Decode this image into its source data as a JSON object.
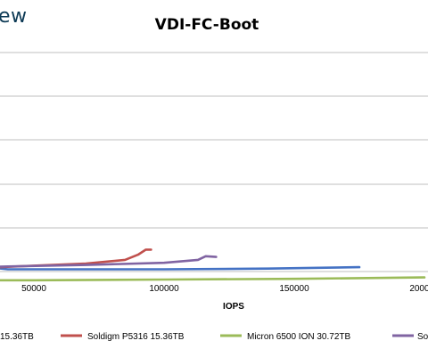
{
  "brand": {
    "text": "ew"
  },
  "chart_data": {
    "type": "line",
    "title": "VDI-FC-Boot",
    "xlabel": "IOPS",
    "ylabel": "",
    "xlim": [
      0,
      200000
    ],
    "ylim": [
      0,
      3
    ],
    "x_ticks": [
      {
        "value": 50000,
        "label": "50000"
      },
      {
        "value": 100000,
        "label": "100000"
      },
      {
        "value": 150000,
        "label": "150000"
      },
      {
        "value": 200000,
        "label": "200000"
      }
    ],
    "grid": true,
    "legend_position": "bottom",
    "series": [
      {
        "name": "15.36TB",
        "color": "#4472C4",
        "points": [
          [
            0,
            0.28
          ],
          [
            8000,
            0.3
          ],
          [
            18000,
            0.24
          ],
          [
            26000,
            0.14
          ],
          [
            32000,
            0.06
          ],
          [
            40000,
            0.03
          ],
          [
            60000,
            0.03
          ],
          [
            100000,
            0.03
          ],
          [
            140000,
            0.04
          ],
          [
            175000,
            0.06
          ]
        ]
      },
      {
        "name": "Soldigm P5316 15.36TB",
        "color": "#C0504D",
        "points": [
          [
            0,
            0.1
          ],
          [
            10000,
            0.06
          ],
          [
            20000,
            0.04
          ],
          [
            30000,
            0.05
          ],
          [
            50000,
            0.08
          ],
          [
            70000,
            0.11
          ],
          [
            85000,
            0.16
          ],
          [
            90000,
            0.23
          ],
          [
            93000,
            0.3
          ],
          [
            95000,
            0.3
          ]
        ]
      },
      {
        "name": "Micron 6500 ION 30.72TB",
        "color": "#9BBB59",
        "points": [
          [
            0,
            -0.12
          ],
          [
            50000,
            -0.12
          ],
          [
            100000,
            -0.11
          ],
          [
            150000,
            -0.1
          ],
          [
            200000,
            -0.08
          ]
        ]
      },
      {
        "name": "So",
        "color": "#8064A2",
        "points": [
          [
            0,
            0.98
          ],
          [
            2000,
            0.75
          ],
          [
            5000,
            0.45
          ],
          [
            9000,
            0.2
          ],
          [
            14000,
            0.08
          ],
          [
            22000,
            0.05
          ],
          [
            40000,
            0.07
          ],
          [
            70000,
            0.09
          ],
          [
            100000,
            0.12
          ],
          [
            113000,
            0.16
          ],
          [
            116000,
            0.21
          ],
          [
            120000,
            0.2
          ]
        ]
      }
    ]
  }
}
